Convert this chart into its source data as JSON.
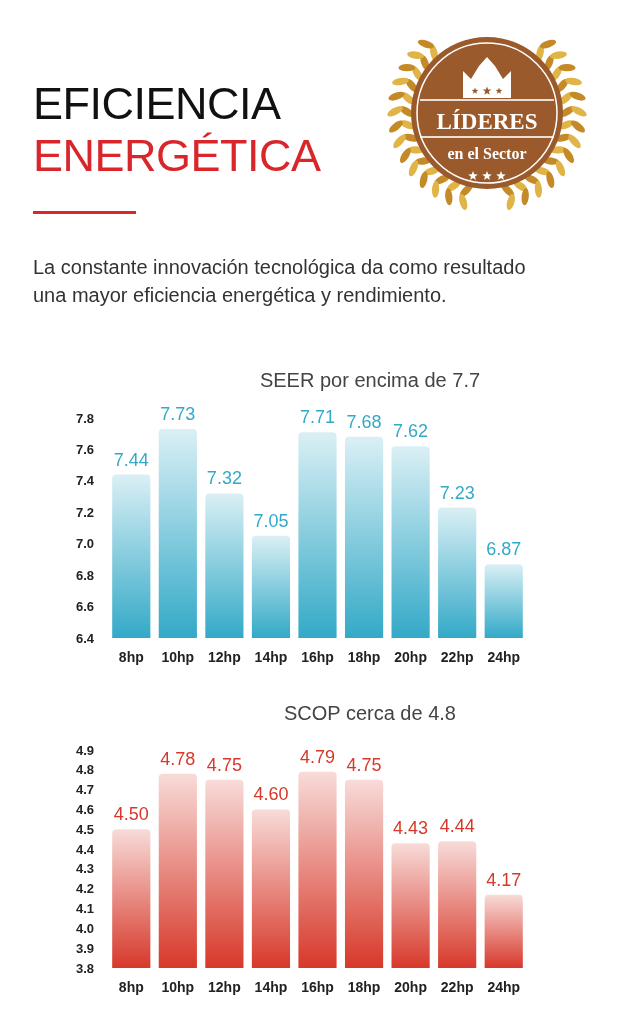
{
  "chart_data": [
    {
      "type": "other",
      "title": "EFICIENCIA ENERGÉTICA",
      "subtitle": "La constante innovación tecnológica da como resultado una mayor eficiencia energética y rendimiento.",
      "annotations": [
        "LÍDERES",
        "en el Sector"
      ]
    },
    {
      "type": "bar",
      "title": "SEER por encima de 7.7",
      "categories": [
        "8hp",
        "10hp",
        "12hp",
        "14hp",
        "16hp",
        "18hp",
        "20hp",
        "22hp",
        "24hp"
      ],
      "values": [
        7.44,
        7.73,
        7.32,
        7.05,
        7.71,
        7.68,
        7.62,
        7.23,
        6.87
      ],
      "color": "#33a9c7",
      "ylim": [
        6.4,
        7.8
      ],
      "yticks": [
        6.4,
        6.6,
        6.8,
        {
          "value": 7,
          "label": "7.0"
        },
        7.2,
        7.4,
        7.6,
        7.8
      ],
      "data_labels": true
    },
    {
      "type": "bar",
      "title": "SCOP cerca de 4.8",
      "categories": [
        "8hp",
        "10hp",
        "12hp",
        "14hp",
        "16hp",
        "18hp",
        "20hp",
        "22hp",
        "24hp"
      ],
      "values": [
        4.5,
        4.78,
        4.75,
        4.6,
        4.79,
        4.75,
        4.43,
        4.44,
        4.17
      ],
      "value_labels": [
        "4.50",
        "4.78",
        "4.75",
        "4.60",
        "4.79",
        "4.75",
        "4.43",
        "4.44",
        "4.17"
      ],
      "color": "#d7382a",
      "ylim": [
        3.8,
        4.9
      ],
      "yticks": [
        3.8,
        3.9,
        {
          "value": 4,
          "label": "4.0"
        },
        4.1,
        4.2,
        4.3,
        4.4,
        4.5,
        4.6,
        4.7,
        4.8,
        4.9
      ]
    }
  ]
}
